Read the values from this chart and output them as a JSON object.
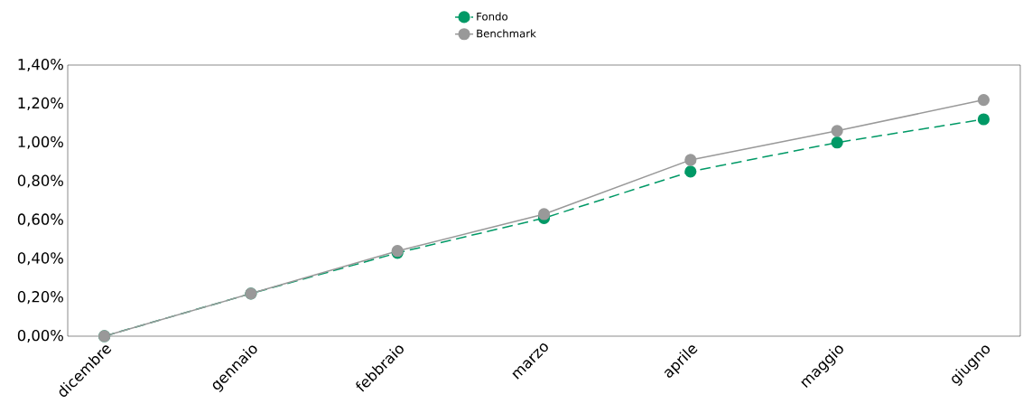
{
  "chart_data": {
    "type": "line",
    "categories": [
      "dicembre",
      "gennaio",
      "febbraio",
      "marzo",
      "aprile",
      "maggio",
      "giugno"
    ],
    "series": [
      {
        "name": "Fondo",
        "color": "#009966",
        "line_style": "dashed",
        "values": [
          0,
          0.22,
          0.43,
          0.61,
          0.85,
          1.0,
          1.12
        ]
      },
      {
        "name": "Benchmark",
        "color": "#999999",
        "line_style": "solid",
        "values": [
          0,
          0.22,
          0.44,
          0.63,
          0.91,
          1.06,
          1.22
        ]
      }
    ],
    "ylim": [
      0,
      1.4
    ],
    "yticks": [
      {
        "value": 0,
        "label": "0,00%"
      },
      {
        "value": 0.2,
        "label": "0,20%"
      },
      {
        "value": 0.4,
        "label": "0,40%"
      },
      {
        "value": 0.6,
        "label": "0,60%"
      },
      {
        "value": 0.8,
        "label": "0,80%"
      },
      {
        "value": 1.0,
        "label": "1,00%"
      },
      {
        "value": 1.2,
        "label": "1,20%"
      },
      {
        "value": 1.4,
        "label": "1,40%"
      }
    ],
    "marker": "circle",
    "grid": false,
    "legend": "top"
  }
}
